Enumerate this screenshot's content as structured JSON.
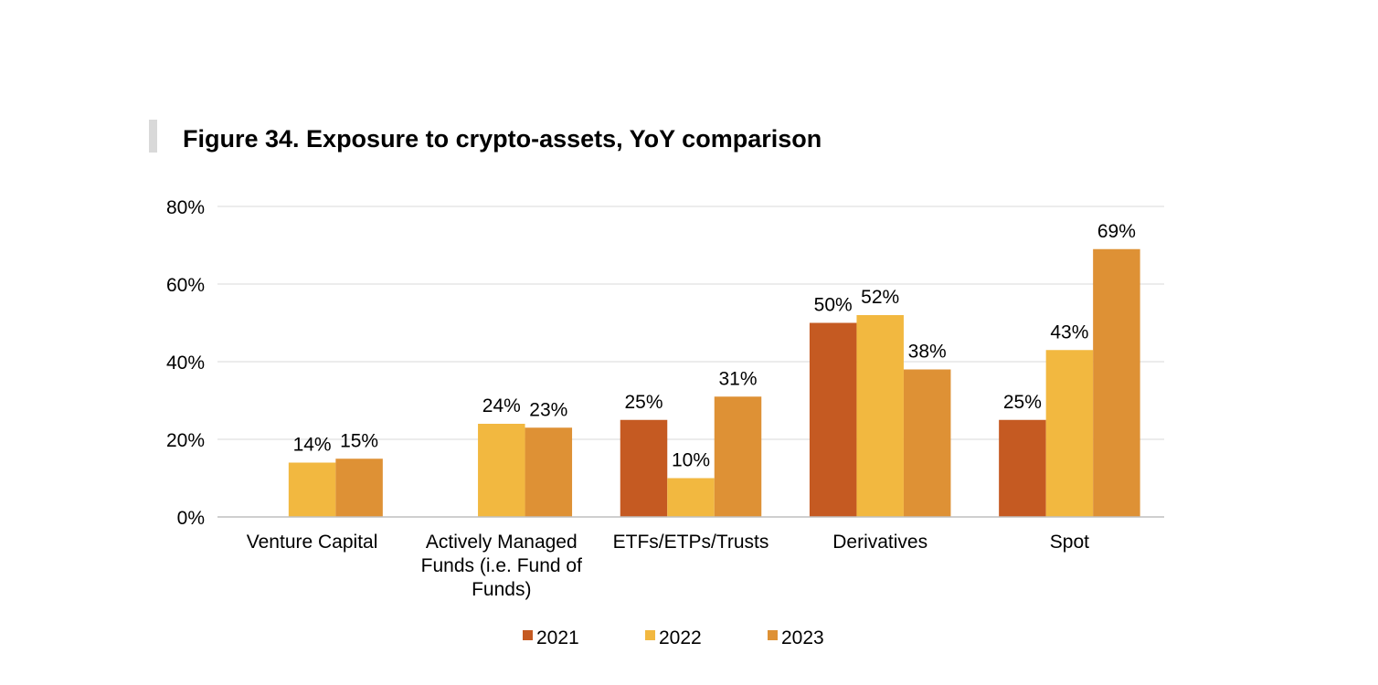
{
  "chart_data": {
    "type": "bar",
    "title": "Figure 34. Exposure to crypto-assets, YoY comparison",
    "xlabel": "",
    "ylabel": "",
    "ylim": [
      0,
      80
    ],
    "yticks": [
      "0%",
      "20%",
      "40%",
      "60%",
      "80%"
    ],
    "ytick_values": [
      0,
      20,
      40,
      60,
      80
    ],
    "grid": true,
    "legend_position": "bottom",
    "categories": [
      [
        "Venture Capital"
      ],
      [
        "Actively Managed",
        "Funds (i.e. Fund of",
        "Funds)"
      ],
      [
        "ETFs/ETPs/Trusts"
      ],
      [
        "Derivatives"
      ],
      [
        "Spot"
      ]
    ],
    "series": [
      {
        "name": "2021",
        "color": "#C55A22",
        "values": [
          null,
          null,
          25,
          50,
          25
        ],
        "labels": [
          "",
          "",
          "25%",
          "50%",
          "25%"
        ]
      },
      {
        "name": "2022",
        "color": "#F2B840",
        "values": [
          14,
          24,
          10,
          52,
          43
        ],
        "labels": [
          "14%",
          "24%",
          "10%",
          "52%",
          "43%"
        ]
      },
      {
        "name": "2023",
        "color": "#DE9135",
        "values": [
          15,
          23,
          31,
          38,
          69
        ],
        "labels": [
          "15%",
          "23%",
          "31%",
          "38%",
          "69%"
        ]
      }
    ]
  },
  "accent_bar_color": "#D9D9D9",
  "grid_color": "#D9D9D9",
  "axis_color": "#BFBFBF"
}
